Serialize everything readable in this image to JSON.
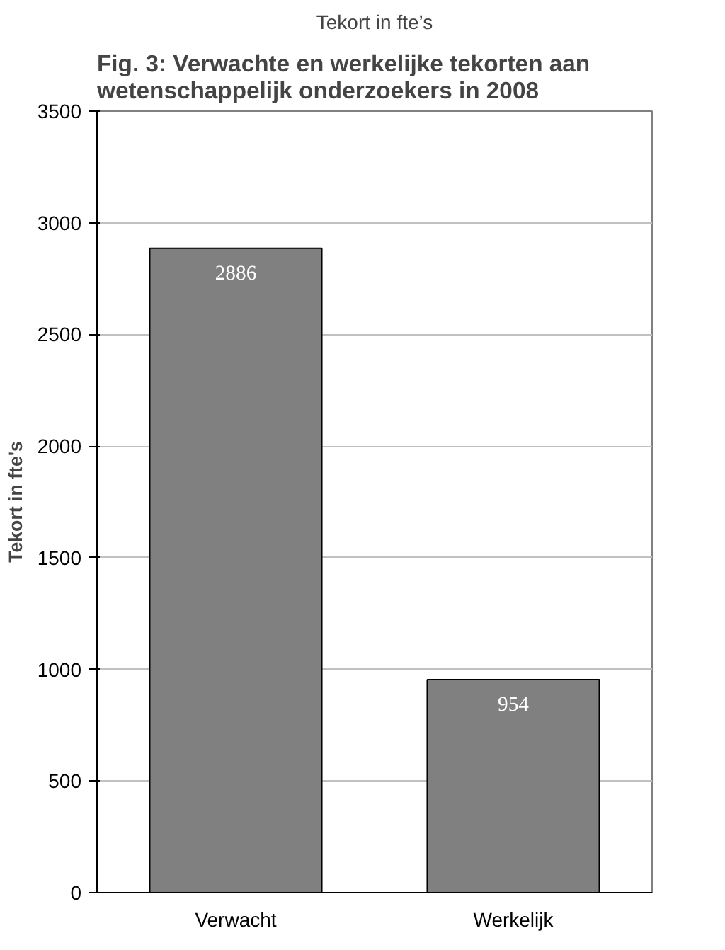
{
  "chart_data": {
    "type": "bar",
    "title": "Fig. 3: Verwachte en werkelijke tekorten aan wetenschappelijk onderzoekers in 2008",
    "subtitle": "Tekort in fte’s",
    "ylabel": "Tekort in fte's",
    "categories": [
      "Verwacht",
      "Werkelijk"
    ],
    "values": [
      2886,
      954
    ],
    "color": "#808080",
    "ylim": [
      0,
      3500
    ],
    "yticks": [
      0,
      500,
      1000,
      1500,
      2000,
      2500,
      3000,
      3500
    ],
    "grid": "y",
    "data_labels": true
  }
}
